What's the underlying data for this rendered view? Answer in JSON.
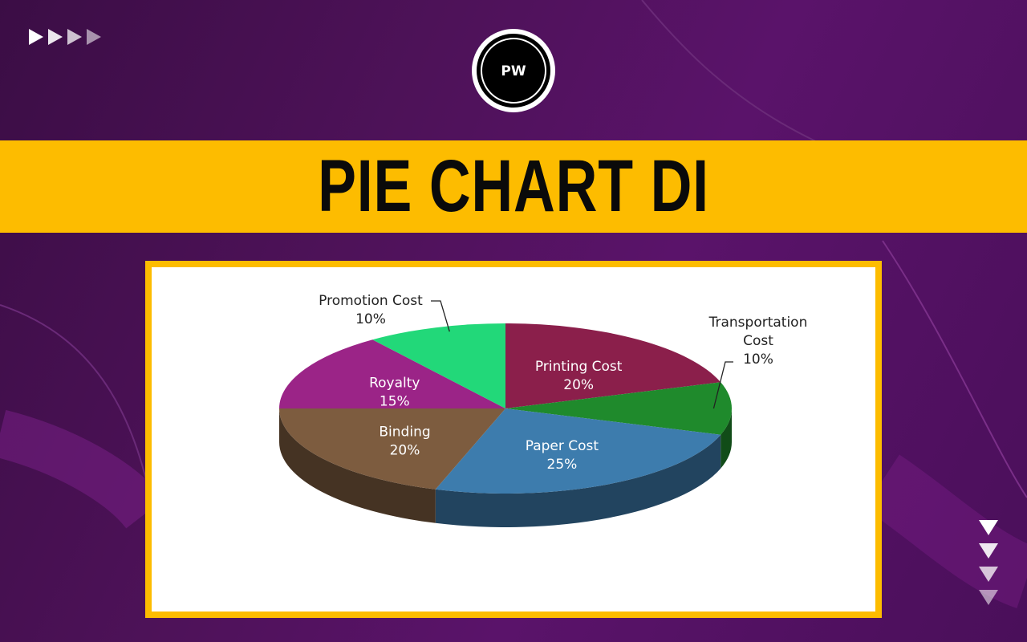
{
  "page": {
    "title": "PIE CHART DI",
    "logo_text": "PW",
    "logo_colors": {
      "ring": "#000000",
      "bg": "#ffffff"
    },
    "accent_color": "#fdbc00",
    "background_color": "#4e1259"
  },
  "icons": {
    "top_arrows": "play-triangle-right-icon",
    "side_arrows": "triangle-down-icon"
  },
  "chart_data": {
    "type": "pie",
    "style": "3d",
    "title": "",
    "slices": [
      {
        "label": "Printing Cost",
        "value": 20,
        "display": "20%",
        "color": "#8b1f4b"
      },
      {
        "label": "Transportation Cost",
        "value": 10,
        "display": "10%",
        "color": "#1f8a2c"
      },
      {
        "label": "Paper Cost",
        "value": 25,
        "display": "25%",
        "color": "#3d7cad"
      },
      {
        "label": "Binding",
        "value": 20,
        "display": "20%",
        "color": "#7d5c3f"
      },
      {
        "label": "Royalty",
        "value": 15,
        "display": "15%",
        "color": "#9b2487"
      },
      {
        "label": "Promotion Cost",
        "value": 10,
        "display": "10%",
        "color": "#22d879"
      }
    ],
    "legend": "none"
  }
}
